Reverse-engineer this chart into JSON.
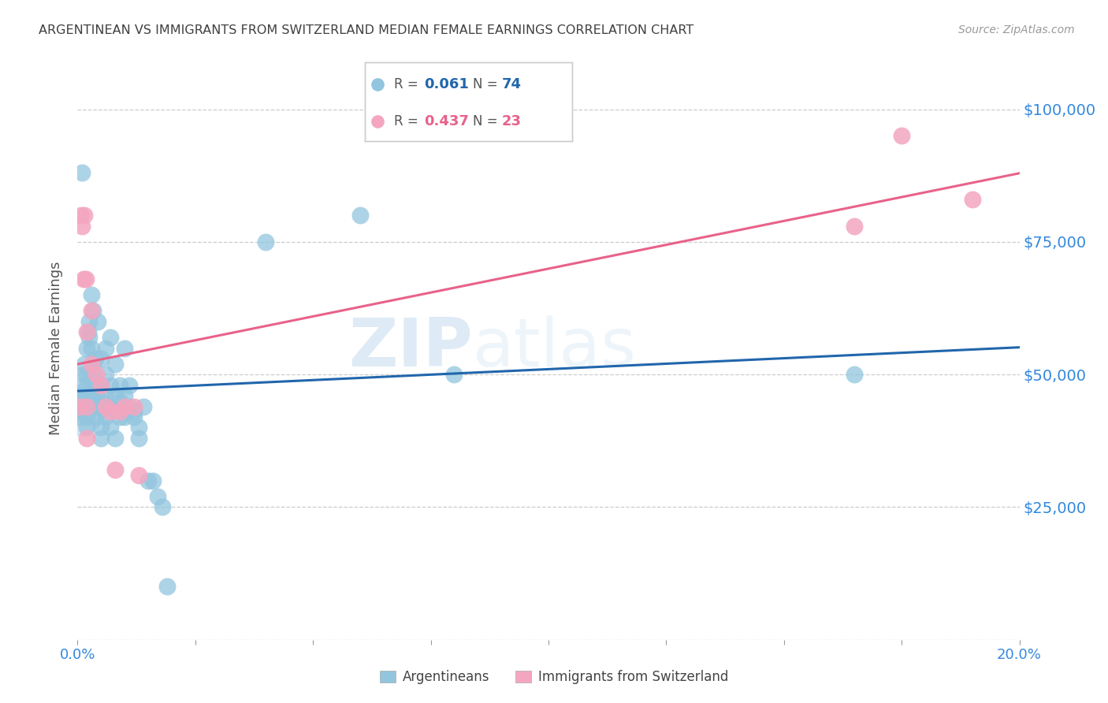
{
  "title": "ARGENTINEAN VS IMMIGRANTS FROM SWITZERLAND MEDIAN FEMALE EARNINGS CORRELATION CHART",
  "source": "Source: ZipAtlas.com",
  "ylabel": "Median Female Earnings",
  "xlim": [
    0,
    0.2
  ],
  "ylim": [
    0,
    110000
  ],
  "legend1_R": "0.061",
  "legend1_N": "74",
  "legend2_R": "0.437",
  "legend2_N": "23",
  "watermark": "ZIPatlas",
  "blue_color": "#92c5de",
  "pink_color": "#f4a6c0",
  "blue_line_color": "#2166ac",
  "pink_line_color": "#e8628a",
  "right_label_color": "#3388dd",
  "title_color": "#404040",
  "argentinean_x": [
    0.0005,
    0.0005,
    0.0008,
    0.001,
    0.001,
    0.0012,
    0.0012,
    0.0014,
    0.0015,
    0.0015,
    0.0015,
    0.0018,
    0.002,
    0.002,
    0.002,
    0.002,
    0.002,
    0.0022,
    0.0022,
    0.0025,
    0.0025,
    0.003,
    0.003,
    0.003,
    0.003,
    0.003,
    0.0032,
    0.0033,
    0.0035,
    0.0038,
    0.004,
    0.004,
    0.004,
    0.004,
    0.0042,
    0.0045,
    0.005,
    0.005,
    0.005,
    0.005,
    0.005,
    0.006,
    0.006,
    0.006,
    0.006,
    0.007,
    0.007,
    0.007,
    0.007,
    0.008,
    0.008,
    0.008,
    0.009,
    0.009,
    0.009,
    0.01,
    0.01,
    0.01,
    0.011,
    0.011,
    0.012,
    0.012,
    0.013,
    0.013,
    0.014,
    0.015,
    0.016,
    0.017,
    0.018,
    0.019,
    0.04,
    0.06,
    0.08,
    0.165
  ],
  "argentinean_y": [
    44000,
    42000,
    46000,
    88000,
    43000,
    50000,
    45000,
    48000,
    47000,
    44000,
    52000,
    46000,
    55000,
    50000,
    44000,
    42000,
    40000,
    58000,
    44000,
    60000,
    57000,
    65000,
    55000,
    50000,
    48000,
    45000,
    62000,
    52000,
    46000,
    53000,
    44000,
    48000,
    42000,
    46000,
    60000,
    44000,
    53000,
    48000,
    45000,
    40000,
    38000,
    55000,
    50000,
    46000,
    42000,
    57000,
    48000,
    44000,
    40000,
    52000,
    46000,
    38000,
    48000,
    45000,
    42000,
    46000,
    55000,
    42000,
    48000,
    44000,
    43000,
    42000,
    40000,
    38000,
    44000,
    30000,
    30000,
    27000,
    25000,
    10000,
    75000,
    80000,
    50000,
    50000
  ],
  "swiss_x": [
    0.0005,
    0.0008,
    0.001,
    0.0012,
    0.0015,
    0.0018,
    0.002,
    0.002,
    0.002,
    0.003,
    0.003,
    0.004,
    0.005,
    0.006,
    0.007,
    0.008,
    0.009,
    0.01,
    0.012,
    0.013,
    0.165,
    0.175,
    0.19
  ],
  "swiss_y": [
    44000,
    80000,
    78000,
    68000,
    80000,
    68000,
    44000,
    58000,
    38000,
    62000,
    52000,
    50000,
    48000,
    44000,
    43000,
    32000,
    43000,
    44000,
    44000,
    31000,
    78000,
    95000,
    83000
  ]
}
